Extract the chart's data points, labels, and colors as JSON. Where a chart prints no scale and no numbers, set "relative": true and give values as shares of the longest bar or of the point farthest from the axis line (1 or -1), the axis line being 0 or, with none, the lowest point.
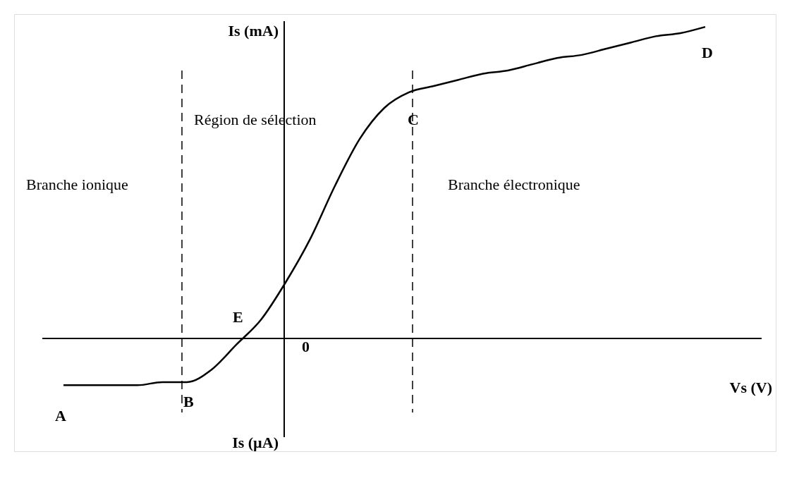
{
  "chart_data": {
    "type": "line",
    "relative": true,
    "xlabel": "Vs (V)",
    "ylabel": "Is (mA)",
    "categories": [
      null,
      null,
      null,
      null,
      null,
      null,
      null,
      null,
      null,
      null,
      null,
      null,
      null,
      null,
      null,
      null,
      null,
      null,
      null,
      null,
      null,
      null,
      null,
      null,
      null,
      null,
      null
    ],
    "series": [
      {
        "color": "#000000",
        "values": [
          -0.15,
          -0.15,
          -0.15,
          -0.15,
          -0.14,
          -0.14,
          -0.1,
          -0.02,
          0.06,
          0.18,
          0.32,
          0.49,
          0.64,
          0.74,
          0.79,
          0.81,
          0.83,
          0.85,
          0.86,
          0.88,
          0.9,
          0.91,
          0.93,
          0.95,
          0.97,
          0.98,
          1.0
        ]
      }
    ],
    "annotations": [
      "A",
      "B",
      "C",
      "D",
      "E",
      "0",
      "Is (µA)",
      "Branche ionique",
      "Région de sélection",
      "Branche électronique"
    ],
    "grid": false,
    "marker": "none",
    "line_style": "solid"
  }
}
